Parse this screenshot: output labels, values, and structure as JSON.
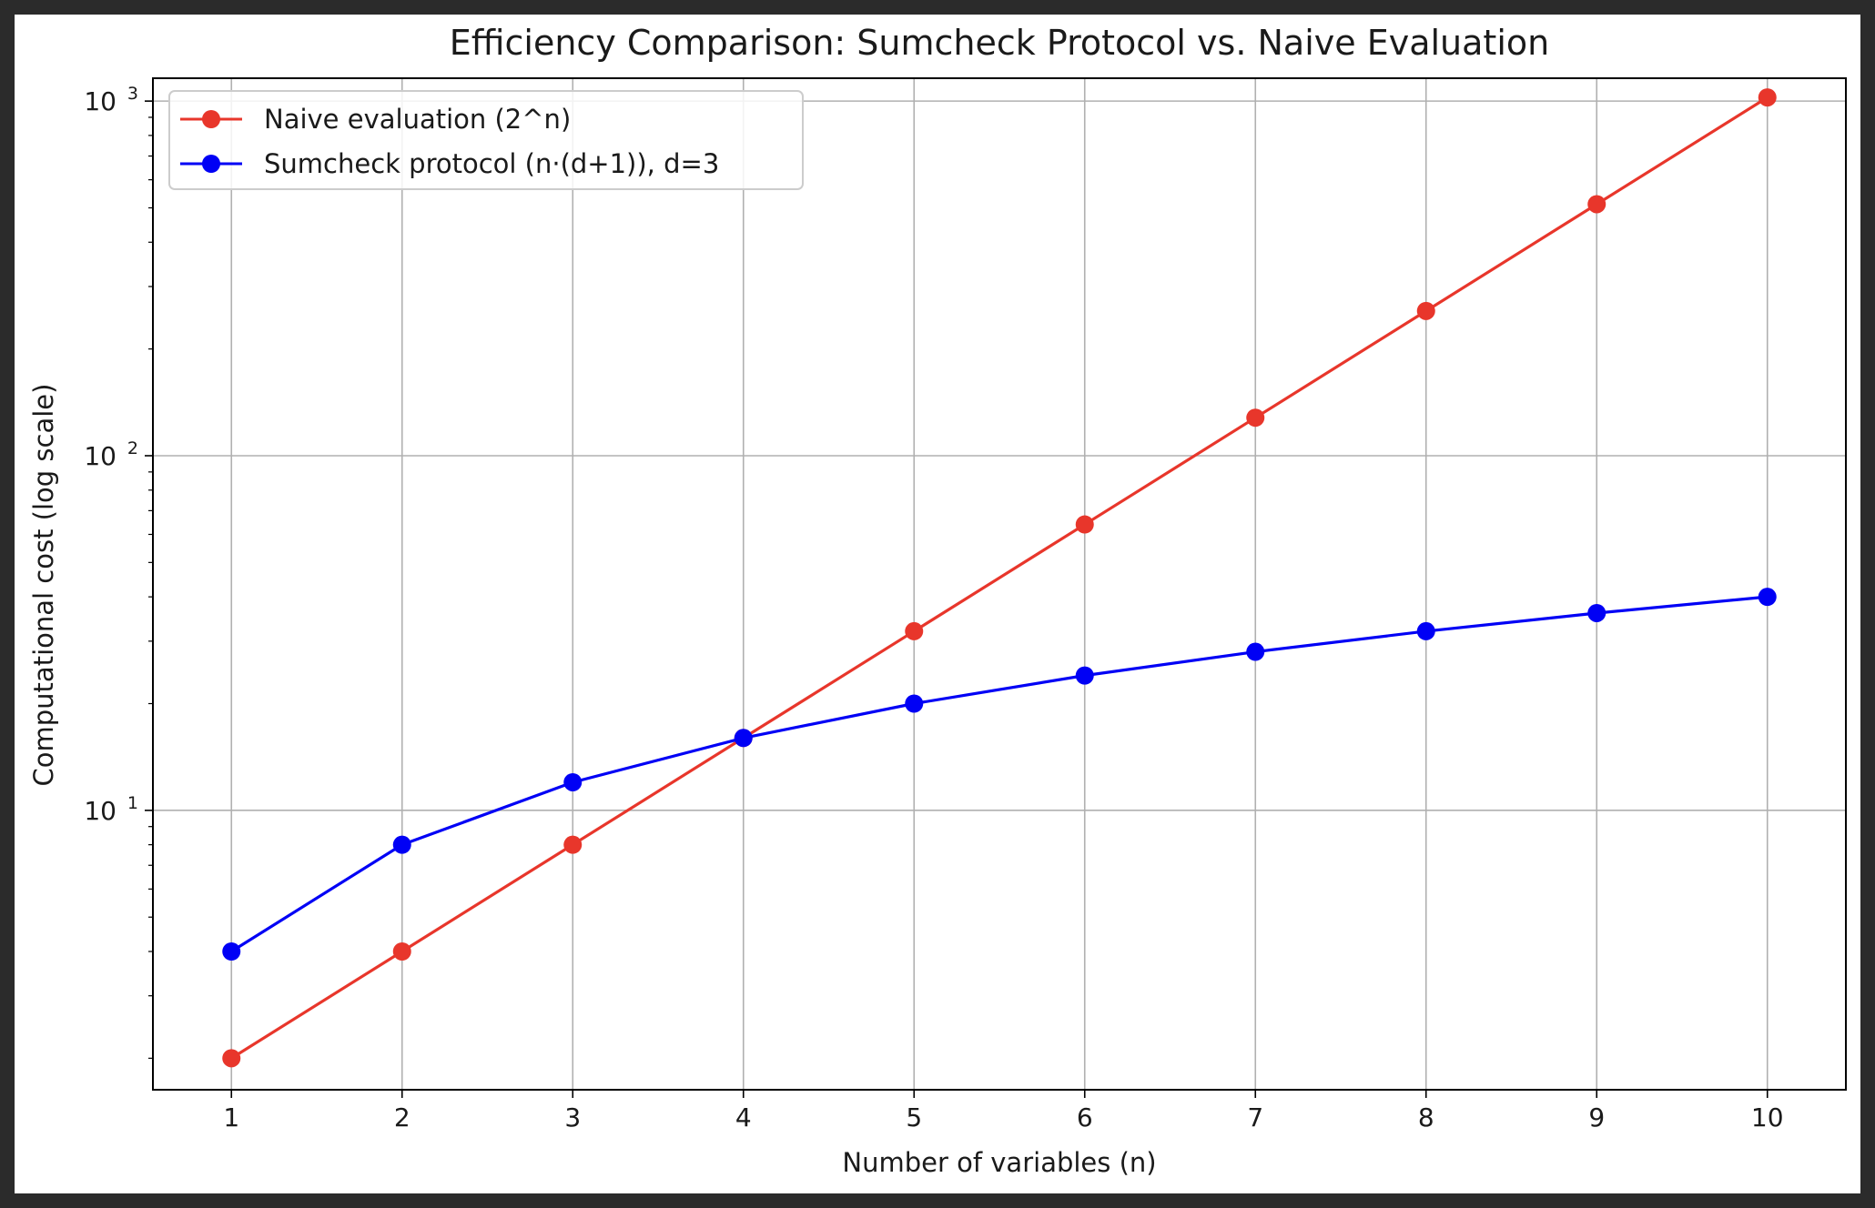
{
  "chart_data": {
    "type": "line",
    "title": "Efficiency Comparison: Sumcheck Protocol vs. Naive Evaluation",
    "xlabel": "Number of variables (n)",
    "ylabel": "Computational cost (log scale)",
    "yscale": "log",
    "x": [
      1,
      2,
      3,
      4,
      5,
      6,
      7,
      8,
      9,
      10
    ],
    "xticks": [
      "1",
      "2",
      "3",
      "4",
      "5",
      "6",
      "7",
      "8",
      "9",
      "10"
    ],
    "yticks": [
      {
        "value": 10,
        "base": "10",
        "exp": "1"
      },
      {
        "value": 100,
        "base": "10",
        "exp": "2"
      },
      {
        "value": 1000,
        "base": "10",
        "exp": "3"
      }
    ],
    "ylim": [
      1.63,
      1160
    ],
    "xlim": [
      0.54,
      10.46
    ],
    "grid": true,
    "legend_position": "top-left",
    "series": [
      {
        "name": "Naive evaluation (2^n)",
        "color": "#e8362b",
        "values": [
          2,
          4,
          8,
          16,
          32,
          64,
          128,
          256,
          512,
          1024
        ]
      },
      {
        "name": "Sumcheck protocol (n·(d+1)), d=3",
        "color": "#0000f5",
        "values": [
          4,
          8,
          12,
          16,
          20,
          24,
          28,
          32,
          36,
          40
        ]
      }
    ]
  }
}
